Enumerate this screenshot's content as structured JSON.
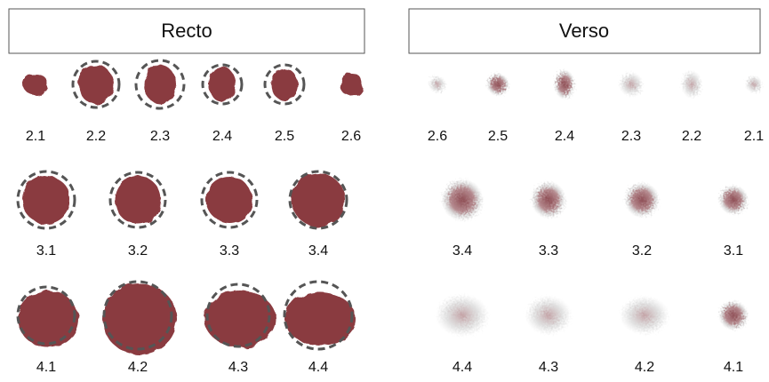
{
  "panels": [
    {
      "title": "Recto",
      "rows": [
        [
          "2.1",
          "2.2",
          "2.3",
          "2.4",
          "2.5",
          "2.6"
        ],
        [
          "3.1",
          "3.2",
          "3.3",
          "3.4"
        ],
        [
          "4.1",
          "4.2",
          "4.3",
          "4.4"
        ]
      ]
    },
    {
      "title": "Verso",
      "rows": [
        [
          "2.6",
          "2.5",
          "2.4",
          "2.3",
          "2.2",
          "2.1"
        ],
        [
          "3.4",
          "3.3",
          "3.2",
          "3.1"
        ],
        [
          "4.4",
          "4.3",
          "4.2",
          "4.1"
        ]
      ]
    }
  ]
}
